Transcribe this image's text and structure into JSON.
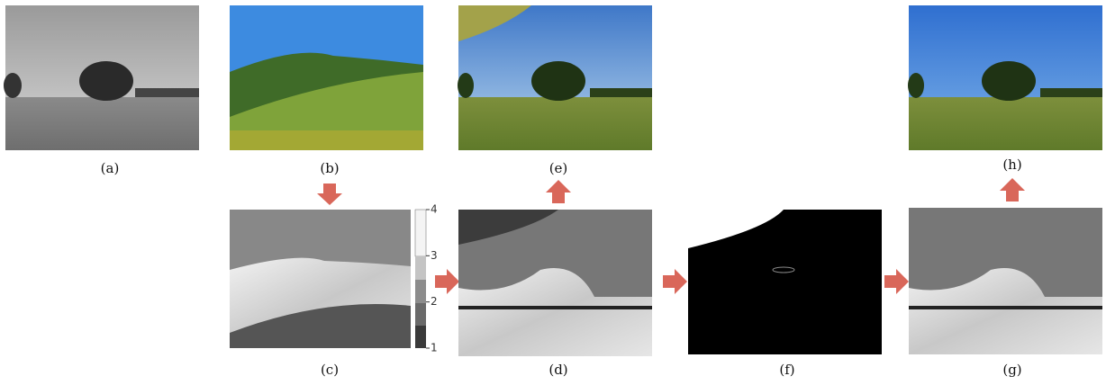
{
  "panels": {
    "a": "(a)",
    "b": "(b)",
    "c": "(c)",
    "d": "(d)",
    "e": "(e)",
    "f": "(f)",
    "g": "(g)",
    "h": "(h)"
  },
  "colorbar": {
    "lim": [
      1,
      4
    ],
    "ticks": [
      1,
      2,
      3,
      4
    ]
  }
}
